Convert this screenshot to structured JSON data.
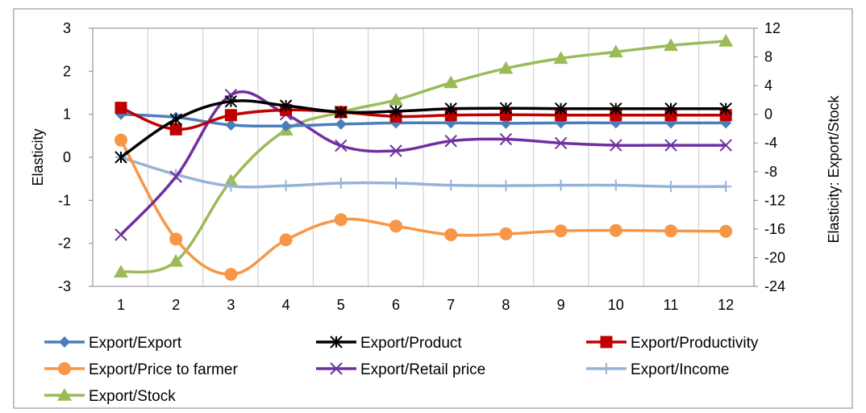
{
  "chart_data": {
    "type": "line",
    "x": [
      1,
      2,
      3,
      4,
      5,
      6,
      7,
      8,
      9,
      10,
      11,
      12
    ],
    "ylabel": "Elasticity",
    "y2label": "Elasticity: Export/Stock",
    "ylim": [
      -3,
      3
    ],
    "yticks": [
      -3,
      -2,
      -1,
      0,
      1,
      2,
      3
    ],
    "y2lim": [
      -24,
      12
    ],
    "y2ticks": [
      -24,
      -20,
      -16,
      -12,
      -8,
      -4,
      0,
      4,
      8,
      12
    ],
    "grid": "vertical",
    "legend_position": "bottom",
    "series": [
      {
        "name": "Export/Export",
        "axis": "left",
        "color": "#4a7ebb",
        "marker": "diamond",
        "values": [
          1.0,
          0.93,
          0.75,
          0.73,
          0.77,
          0.8,
          0.8,
          0.79,
          0.8,
          0.8,
          0.8,
          0.8
        ]
      },
      {
        "name": "Export/Product",
        "axis": "left",
        "color": "#000000",
        "marker": "asterisk",
        "values": [
          0.0,
          0.88,
          1.3,
          1.2,
          1.05,
          1.07,
          1.13,
          1.14,
          1.13,
          1.13,
          1.13,
          1.13
        ]
      },
      {
        "name": "Export/Productivity",
        "axis": "left",
        "color": "#c00000",
        "marker": "square",
        "values": [
          1.15,
          0.65,
          0.98,
          1.1,
          1.05,
          0.95,
          0.98,
          0.99,
          0.98,
          0.98,
          0.98,
          0.98
        ]
      },
      {
        "name": "Export/Price to farmer",
        "axis": "left",
        "color": "#f79646",
        "marker": "circle",
        "values": [
          0.4,
          -1.9,
          -2.72,
          -1.92,
          -1.45,
          -1.6,
          -1.8,
          -1.78,
          -1.71,
          -1.7,
          -1.71,
          -1.72
        ]
      },
      {
        "name": "Export/Retail price",
        "axis": "left",
        "color": "#7030a0",
        "marker": "x",
        "values": [
          -1.8,
          -0.45,
          1.45,
          1.0,
          0.27,
          0.15,
          0.38,
          0.42,
          0.33,
          0.28,
          0.28,
          0.28
        ]
      },
      {
        "name": "Export/Income",
        "axis": "left",
        "color": "#95b3d7",
        "marker": "plus",
        "values": [
          0.0,
          -0.4,
          -0.67,
          -0.66,
          -0.6,
          -0.6,
          -0.65,
          -0.66,
          -0.65,
          -0.65,
          -0.68,
          -0.68
        ]
      },
      {
        "name": "Export/Stock",
        "axis": "right",
        "color": "#9bbb59",
        "marker": "triangle",
        "values": [
          -22.0,
          -20.5,
          -9.3,
          -2.2,
          0.3,
          2.0,
          4.4,
          6.4,
          7.8,
          8.7,
          9.6,
          10.2
        ]
      }
    ]
  }
}
